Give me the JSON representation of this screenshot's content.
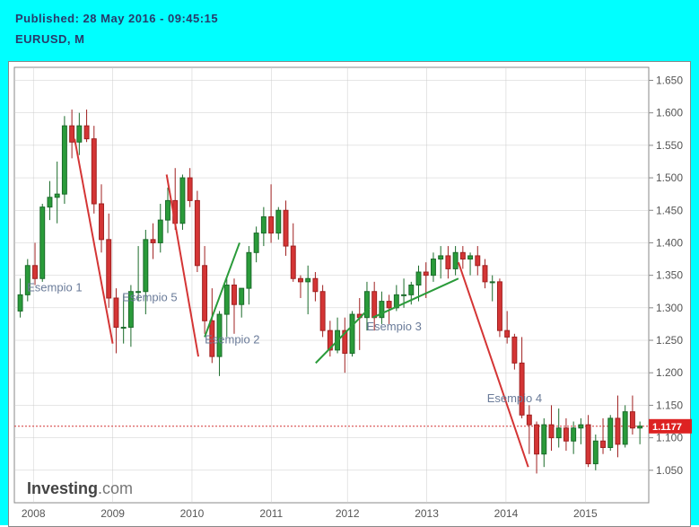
{
  "header": {
    "line1": "Published: 28 May 2016 - 09:45:15",
    "line2": "EURUSD, M"
  },
  "chart": {
    "type": "candlestick",
    "background_color": "#ffffff",
    "outer_border_color": "#00ffff",
    "grid_color": "#cccccc",
    "up_color": "#2a9b3a",
    "down_color": "#d43535",
    "price_line_color": "#d43535",
    "last_price": 1.1177,
    "last_price_label": "1.1177",
    "y_axis": {
      "min": 1.0,
      "max": 1.67,
      "ticks": [
        1.05,
        1.1,
        1.15,
        1.2,
        1.25,
        1.3,
        1.35,
        1.4,
        1.45,
        1.5,
        1.55,
        1.6,
        1.65
      ],
      "tick_fontsize": 12
    },
    "x_axis": {
      "labels": [
        "2008",
        "2009",
        "2010",
        "2011",
        "2012",
        "2013",
        "2014",
        "2015"
      ],
      "positions_t": [
        0.03,
        0.155,
        0.28,
        0.405,
        0.525,
        0.65,
        0.775,
        0.9
      ],
      "tick_fontsize": 12
    },
    "candles": [
      {
        "o": 1.295,
        "h": 1.345,
        "l": 1.285,
        "c": 1.32
      },
      {
        "o": 1.32,
        "h": 1.375,
        "l": 1.31,
        "c": 1.365
      },
      {
        "o": 1.365,
        "h": 1.4,
        "l": 1.335,
        "c": 1.345
      },
      {
        "o": 1.345,
        "h": 1.46,
        "l": 1.34,
        "c": 1.455
      },
      {
        "o": 1.455,
        "h": 1.495,
        "l": 1.435,
        "c": 1.47
      },
      {
        "o": 1.47,
        "h": 1.525,
        "l": 1.43,
        "c": 1.475
      },
      {
        "o": 1.475,
        "h": 1.595,
        "l": 1.46,
        "c": 1.58
      },
      {
        "o": 1.58,
        "h": 1.605,
        "l": 1.53,
        "c": 1.555
      },
      {
        "o": 1.555,
        "h": 1.6,
        "l": 1.535,
        "c": 1.58
      },
      {
        "o": 1.58,
        "h": 1.605,
        "l": 1.555,
        "c": 1.56
      },
      {
        "o": 1.56,
        "h": 1.58,
        "l": 1.445,
        "c": 1.46
      },
      {
        "o": 1.46,
        "h": 1.49,
        "l": 1.385,
        "c": 1.405
      },
      {
        "o": 1.405,
        "h": 1.445,
        "l": 1.3,
        "c": 1.315
      },
      {
        "o": 1.315,
        "h": 1.33,
        "l": 1.23,
        "c": 1.27
      },
      {
        "o": 1.27,
        "h": 1.32,
        "l": 1.245,
        "c": 1.27
      },
      {
        "o": 1.27,
        "h": 1.335,
        "l": 1.24,
        "c": 1.325
      },
      {
        "o": 1.325,
        "h": 1.395,
        "l": 1.31,
        "c": 1.325
      },
      {
        "o": 1.325,
        "h": 1.42,
        "l": 1.29,
        "c": 1.405
      },
      {
        "o": 1.405,
        "h": 1.43,
        "l": 1.375,
        "c": 1.4
      },
      {
        "o": 1.4,
        "h": 1.46,
        "l": 1.385,
        "c": 1.435
      },
      {
        "o": 1.435,
        "h": 1.485,
        "l": 1.415,
        "c": 1.465
      },
      {
        "o": 1.465,
        "h": 1.515,
        "l": 1.42,
        "c": 1.43
      },
      {
        "o": 1.43,
        "h": 1.505,
        "l": 1.42,
        "c": 1.5
      },
      {
        "o": 1.5,
        "h": 1.515,
        "l": 1.455,
        "c": 1.465
      },
      {
        "o": 1.465,
        "h": 1.48,
        "l": 1.355,
        "c": 1.365
      },
      {
        "o": 1.365,
        "h": 1.395,
        "l": 1.26,
        "c": 1.28
      },
      {
        "o": 1.28,
        "h": 1.33,
        "l": 1.215,
        "c": 1.225
      },
      {
        "o": 1.225,
        "h": 1.295,
        "l": 1.195,
        "c": 1.29
      },
      {
        "o": 1.29,
        "h": 1.345,
        "l": 1.255,
        "c": 1.335
      },
      {
        "o": 1.335,
        "h": 1.345,
        "l": 1.26,
        "c": 1.305
      },
      {
        "o": 1.305,
        "h": 1.33,
        "l": 1.285,
        "c": 1.33
      },
      {
        "o": 1.33,
        "h": 1.395,
        "l": 1.305,
        "c": 1.385
      },
      {
        "o": 1.385,
        "h": 1.425,
        "l": 1.37,
        "c": 1.415
      },
      {
        "o": 1.415,
        "h": 1.455,
        "l": 1.395,
        "c": 1.44
      },
      {
        "o": 1.44,
        "h": 1.49,
        "l": 1.4,
        "c": 1.415
      },
      {
        "o": 1.415,
        "h": 1.455,
        "l": 1.405,
        "c": 1.45
      },
      {
        "o": 1.45,
        "h": 1.465,
        "l": 1.38,
        "c": 1.395
      },
      {
        "o": 1.395,
        "h": 1.43,
        "l": 1.34,
        "c": 1.345
      },
      {
        "o": 1.345,
        "h": 1.35,
        "l": 1.315,
        "c": 1.34
      },
      {
        "o": 1.34,
        "h": 1.365,
        "l": 1.29,
        "c": 1.345
      },
      {
        "o": 1.345,
        "h": 1.355,
        "l": 1.31,
        "c": 1.325
      },
      {
        "o": 1.325,
        "h": 1.335,
        "l": 1.255,
        "c": 1.265
      },
      {
        "o": 1.265,
        "h": 1.28,
        "l": 1.225,
        "c": 1.235
      },
      {
        "o": 1.235,
        "h": 1.285,
        "l": 1.23,
        "c": 1.265
      },
      {
        "o": 1.265,
        "h": 1.285,
        "l": 1.2,
        "c": 1.23
      },
      {
        "o": 1.23,
        "h": 1.295,
        "l": 1.225,
        "c": 1.29
      },
      {
        "o": 1.29,
        "h": 1.315,
        "l": 1.235,
        "c": 1.285
      },
      {
        "o": 1.285,
        "h": 1.34,
        "l": 1.265,
        "c": 1.325
      },
      {
        "o": 1.325,
        "h": 1.34,
        "l": 1.265,
        "c": 1.285
      },
      {
        "o": 1.285,
        "h": 1.325,
        "l": 1.275,
        "c": 1.31
      },
      {
        "o": 1.31,
        "h": 1.32,
        "l": 1.275,
        "c": 1.3
      },
      {
        "o": 1.3,
        "h": 1.335,
        "l": 1.295,
        "c": 1.32
      },
      {
        "o": 1.32,
        "h": 1.345,
        "l": 1.3,
        "c": 1.32
      },
      {
        "o": 1.32,
        "h": 1.34,
        "l": 1.305,
        "c": 1.335
      },
      {
        "o": 1.335,
        "h": 1.365,
        "l": 1.31,
        "c": 1.355
      },
      {
        "o": 1.355,
        "h": 1.37,
        "l": 1.315,
        "c": 1.35
      },
      {
        "o": 1.35,
        "h": 1.385,
        "l": 1.34,
        "c": 1.375
      },
      {
        "o": 1.375,
        "h": 1.395,
        "l": 1.345,
        "c": 1.38
      },
      {
        "o": 1.38,
        "h": 1.395,
        "l": 1.345,
        "c": 1.36
      },
      {
        "o": 1.36,
        "h": 1.395,
        "l": 1.35,
        "c": 1.385
      },
      {
        "o": 1.385,
        "h": 1.395,
        "l": 1.36,
        "c": 1.375
      },
      {
        "o": 1.375,
        "h": 1.385,
        "l": 1.35,
        "c": 1.38
      },
      {
        "o": 1.38,
        "h": 1.395,
        "l": 1.35,
        "c": 1.365
      },
      {
        "o": 1.365,
        "h": 1.375,
        "l": 1.33,
        "c": 1.34
      },
      {
        "o": 1.34,
        "h": 1.35,
        "l": 1.31,
        "c": 1.34
      },
      {
        "o": 1.34,
        "h": 1.345,
        "l": 1.255,
        "c": 1.265
      },
      {
        "o": 1.265,
        "h": 1.295,
        "l": 1.245,
        "c": 1.255
      },
      {
        "o": 1.255,
        "h": 1.26,
        "l": 1.205,
        "c": 1.215
      },
      {
        "o": 1.215,
        "h": 1.255,
        "l": 1.13,
        "c": 1.135
      },
      {
        "o": 1.135,
        "h": 1.15,
        "l": 1.075,
        "c": 1.12
      },
      {
        "o": 1.12,
        "h": 1.125,
        "l": 1.045,
        "c": 1.075
      },
      {
        "o": 1.075,
        "h": 1.13,
        "l": 1.055,
        "c": 1.12
      },
      {
        "o": 1.12,
        "h": 1.15,
        "l": 1.08,
        "c": 1.1
      },
      {
        "o": 1.1,
        "h": 1.145,
        "l": 1.085,
        "c": 1.115
      },
      {
        "o": 1.115,
        "h": 1.13,
        "l": 1.08,
        "c": 1.095
      },
      {
        "o": 1.095,
        "h": 1.125,
        "l": 1.075,
        "c": 1.115
      },
      {
        "o": 1.115,
        "h": 1.13,
        "l": 1.09,
        "c": 1.12
      },
      {
        "o": 1.12,
        "h": 1.135,
        "l": 1.055,
        "c": 1.06
      },
      {
        "o": 1.06,
        "h": 1.105,
        "l": 1.05,
        "c": 1.095
      },
      {
        "o": 1.095,
        "h": 1.13,
        "l": 1.075,
        "c": 1.085
      },
      {
        "o": 1.085,
        "h": 1.135,
        "l": 1.08,
        "c": 1.13
      },
      {
        "o": 1.13,
        "h": 1.165,
        "l": 1.07,
        "c": 1.09
      },
      {
        "o": 1.09,
        "h": 1.15,
        "l": 1.085,
        "c": 1.14
      },
      {
        "o": 1.14,
        "h": 1.165,
        "l": 1.105,
        "c": 1.115
      },
      {
        "o": 1.115,
        "h": 1.125,
        "l": 1.09,
        "c": 1.118
      }
    ],
    "trend_lines": [
      {
        "color": "#d43535",
        "width": 2,
        "x1_t": 0.095,
        "y1": 1.56,
        "x2_t": 0.155,
        "y2": 1.245
      },
      {
        "color": "#d43535",
        "width": 2,
        "x1_t": 0.24,
        "y1": 1.505,
        "x2_t": 0.29,
        "y2": 1.225
      },
      {
        "color": "#2a9b3a",
        "width": 2,
        "x1_t": 0.3,
        "y1": 1.255,
        "x2_t": 0.355,
        "y2": 1.4
      },
      {
        "color": "#2a9b3a",
        "width": 2,
        "x1_t": 0.475,
        "y1": 1.215,
        "x2_t": 0.56,
        "y2": 1.3
      },
      {
        "color": "#2a9b3a",
        "width": 2,
        "x1_t": 0.565,
        "y1": 1.285,
        "x2_t": 0.7,
        "y2": 1.345
      },
      {
        "color": "#d43535",
        "width": 2,
        "x1_t": 0.7,
        "y1": 1.37,
        "x2_t": 0.81,
        "y2": 1.055
      }
    ],
    "annotations": [
      {
        "text": "Esempio 1",
        "t": 0.02,
        "y": 1.325
      },
      {
        "text": "Esempio 5",
        "t": 0.17,
        "y": 1.31
      },
      {
        "text": "Esempio 2",
        "t": 0.3,
        "y": 1.245
      },
      {
        "text": "Esempio 3",
        "t": 0.555,
        "y": 1.265
      },
      {
        "text": "Esempio 4",
        "t": 0.745,
        "y": 1.155
      }
    ],
    "logo": {
      "part1": "Investing",
      "part2": ".com"
    }
  }
}
